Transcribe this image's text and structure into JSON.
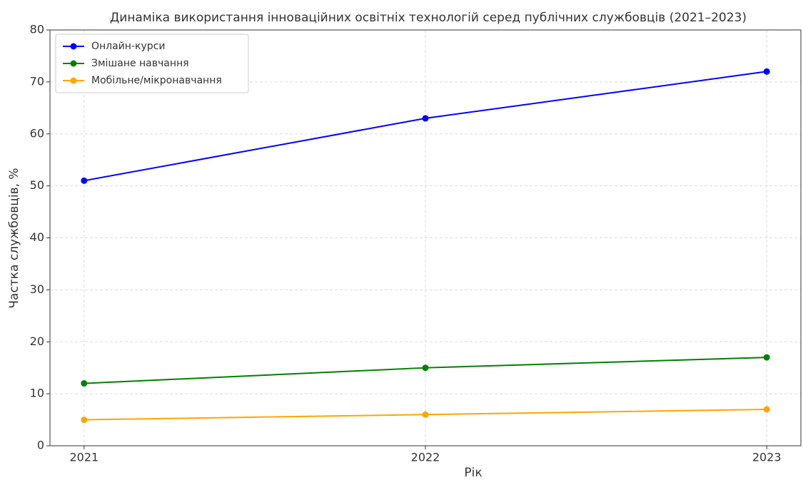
{
  "chart_data": {
    "type": "line",
    "title": "Динаміка використання інноваційних освітніх технологій серед публічних службовців (2021–2023)",
    "x_label": "Рік",
    "y_label": "Частка службовців, %",
    "x": [
      2021,
      2022,
      2023
    ],
    "series": [
      {
        "name": "Онлайн-курси",
        "color": "#0000ff",
        "values": [
          51,
          63,
          72
        ]
      },
      {
        "name": "Змішане навчання",
        "color": "#008000",
        "values": [
          12,
          15,
          17
        ]
      },
      {
        "name": "Мобільне/мікронавчання",
        "color": "#ffa500",
        "values": [
          5,
          6,
          7
        ]
      }
    ],
    "xlim": [
      2020.9,
      2023.1
    ],
    "xticks": [
      2021,
      2022,
      2023
    ],
    "ylim": [
      0,
      80
    ],
    "yticks": [
      0,
      10,
      20,
      30,
      40,
      50,
      60,
      70,
      80
    ],
    "grid": true,
    "legend": "upper left"
  }
}
